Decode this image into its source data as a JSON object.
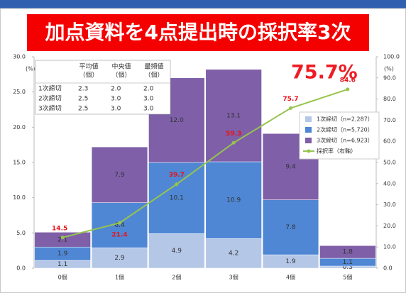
{
  "chart_data": {
    "type": "stacked_bar_line",
    "title": "加点資料を4点提出時の採択率3次",
    "annotation": "75.7%",
    "y_unit": "(%)",
    "y2_unit": "(%)",
    "categories": [
      "0個",
      "1個",
      "2個",
      "3個",
      "4個",
      "5個"
    ],
    "series": [
      {
        "name": "1次締切（n=2,287）",
        "color": "#b4c7e7",
        "values": [
          1.1,
          2.9,
          4.9,
          4.2,
          1.9,
          0.3
        ],
        "value_labels": [
          "1.1",
          "2.9",
          "4.9",
          "4.2",
          "1.9",
          "0.3"
        ]
      },
      {
        "name": "2次締切（n=5,720）",
        "color": "#4f87d4",
        "values": [
          1.9,
          6.4,
          10.1,
          10.9,
          7.8,
          1.1
        ],
        "value_labels": [
          "1.9",
          "6.4",
          "10.1",
          "10.9",
          "7.8",
          "1.1"
        ]
      },
      {
        "name": "3次締切（n=6,923）",
        "color": "#7e5fa8",
        "values": [
          2.1,
          7.9,
          12.0,
          13.1,
          9.4,
          1.8
        ],
        "value_labels": [
          "2.1",
          "7.9",
          "12.0",
          "13.1",
          "9.4",
          "1.8"
        ]
      },
      {
        "name": "採択率（右軸）",
        "color": "#97c44d",
        "type": "line",
        "axis": "y2",
        "values": [
          14.5,
          21.4,
          39.7,
          59.3,
          75.7,
          84.6
        ]
      }
    ],
    "ylim": [
      0,
      30
    ],
    "yticks": [
      {
        "value": 0,
        "label": "0.0"
      },
      {
        "value": 5,
        "label": "5.0"
      },
      {
        "value": 10,
        "label": "10.0"
      },
      {
        "value": 15,
        "label": "15.0"
      },
      {
        "value": 20,
        "label": "20.0"
      },
      {
        "value": 25,
        "label": "25.0"
      },
      {
        "value": 30,
        "label": "30.0"
      }
    ],
    "y2lim": [
      0,
      100
    ],
    "y2ticks": [
      {
        "value": 0,
        "label": "0.0"
      },
      {
        "value": 10,
        "label": "10.0"
      },
      {
        "value": 20,
        "label": "20.0"
      },
      {
        "value": 30,
        "label": "30.0"
      },
      {
        "value": 40,
        "label": "40.0"
      },
      {
        "value": 50,
        "label": "50.0"
      },
      {
        "value": 60,
        "label": "60.0"
      },
      {
        "value": 70,
        "label": "70.0"
      },
      {
        "value": 80,
        "label": "80.0"
      },
      {
        "value": 90,
        "label": "90.0"
      },
      {
        "value": 100,
        "label": "100.0"
      }
    ],
    "table": {
      "columns": [
        [
          "平均値",
          "（個）"
        ],
        [
          "中央値",
          "（個）"
        ],
        [
          "最頻値",
          "（個）"
        ]
      ],
      "rows": [
        {
          "label": "1次締切",
          "values": [
            "2.3",
            "2.0",
            "2.0"
          ]
        },
        {
          "label": "2次締切",
          "values": [
            "2.5",
            "3.0",
            "3.0"
          ]
        },
        {
          "label": "3次締切",
          "values": [
            "2.5",
            "3.0",
            "3.0"
          ]
        }
      ]
    }
  }
}
